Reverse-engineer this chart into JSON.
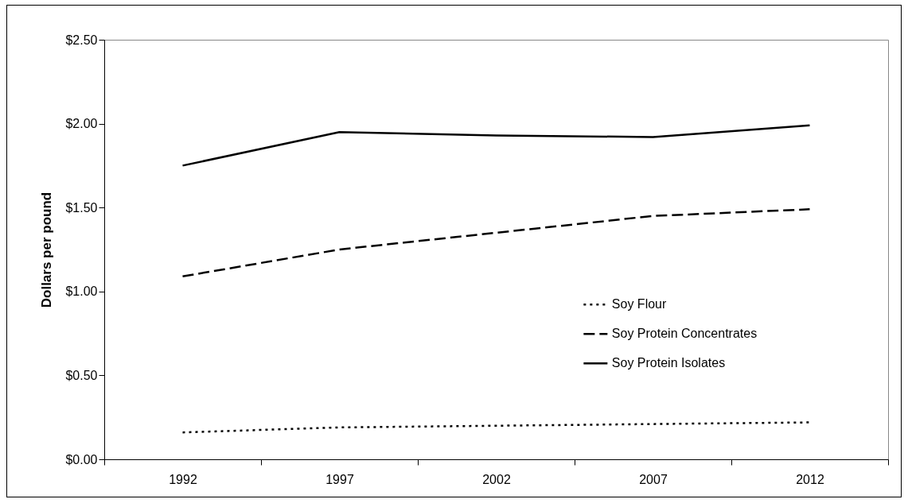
{
  "chart_data": {
    "type": "line",
    "ylabel": "Dollars per pound",
    "categories": [
      "1992",
      "1997",
      "2002",
      "2007",
      "2012"
    ],
    "ylim": [
      0,
      2.5
    ],
    "yticks": [
      {
        "value": 0,
        "label": "$0.00"
      },
      {
        "value": 0.5,
        "label": "$0.50"
      },
      {
        "value": 1,
        "label": "$1.00"
      },
      {
        "value": 1.5,
        "label": "$1.50"
      },
      {
        "value": 2,
        "label": "$2.00"
      },
      {
        "value": 2.5,
        "label": "$2.50"
      }
    ],
    "grid": false,
    "legend": "right",
    "marker": "none",
    "series": [
      {
        "name": "Soy Flour",
        "color": "#000000",
        "line_style": "dotted",
        "values": [
          0.16,
          0.19,
          0.2,
          0.21,
          0.22
        ]
      },
      {
        "name": "Soy Protein Concentrates",
        "color": "#000000",
        "line_style": "dashed",
        "values": [
          1.09,
          1.25,
          1.35,
          1.45,
          1.49
        ]
      },
      {
        "name": "Soy Protein Isolates",
        "color": "#000000",
        "line_style": "solid",
        "values": [
          1.75,
          1.95,
          1.93,
          1.92,
          1.99
        ]
      }
    ]
  }
}
